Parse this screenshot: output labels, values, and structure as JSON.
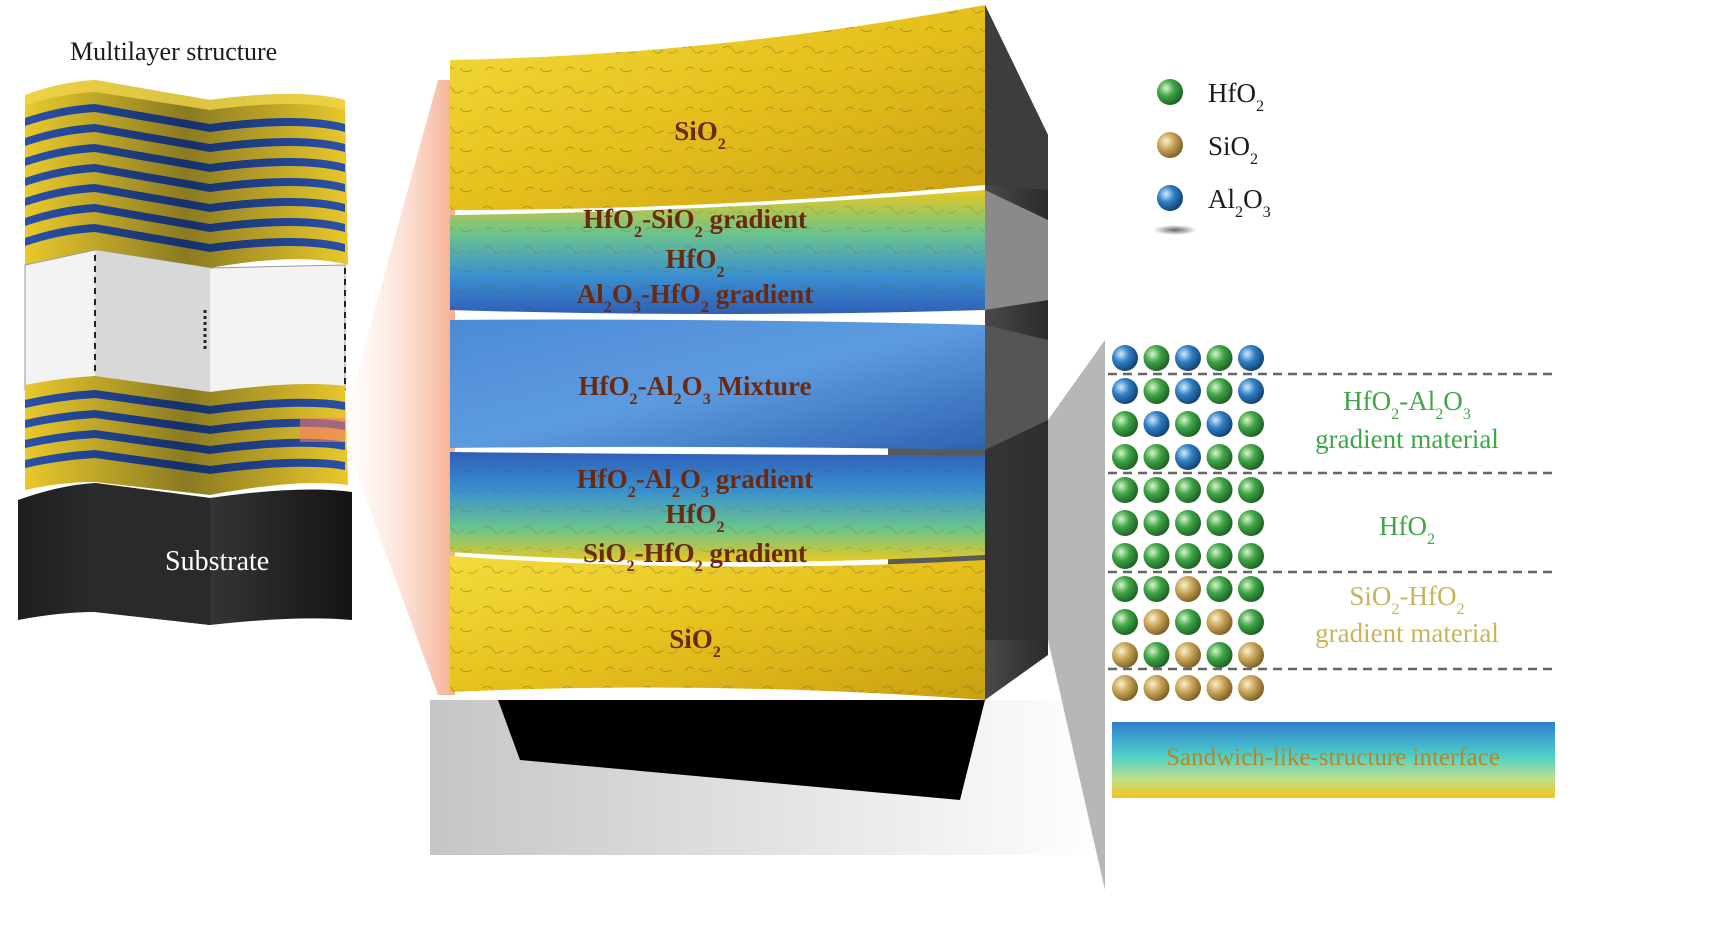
{
  "left_figure": {
    "title": "Multilayer structure",
    "substrate_label": "Substrate"
  },
  "central_block": {
    "layers": [
      {
        "lines": [
          [
            "SiO",
            "2",
            ""
          ]
        ]
      },
      {
        "lines": [
          [
            "HfO",
            "2",
            "-SiO",
            "2",
            " gradient"
          ],
          [
            "HfO",
            "2",
            ""
          ],
          [
            "Al",
            "2",
            "O",
            "3",
            "-HfO",
            "2",
            " gradient"
          ]
        ]
      },
      {
        "lines": [
          [
            "HfO",
            "2",
            "-Al",
            "2",
            "O",
            "3",
            " Mixture"
          ]
        ]
      },
      {
        "lines": [
          [
            "HfO",
            "2",
            "-Al",
            "2",
            "O",
            "3",
            " gradient"
          ],
          [
            "HfO",
            "2",
            ""
          ],
          [
            "SiO",
            "2",
            "-HfO",
            "2",
            " gradient"
          ]
        ]
      },
      {
        "lines": [
          [
            "SiO",
            "2",
            ""
          ]
        ]
      }
    ]
  },
  "legend": {
    "items": [
      {
        "parts": [
          "HfO",
          "2",
          ""
        ],
        "color": "#3fa548"
      },
      {
        "parts": [
          "SiO",
          "2",
          ""
        ],
        "color": "#c9a65a"
      },
      {
        "parts": [
          "Al",
          "2",
          "O",
          "3",
          ""
        ],
        "color": "#2f7fc4"
      }
    ]
  },
  "atomic_panel": {
    "rows": [
      [
        "A",
        "H",
        "A",
        "H",
        "A"
      ],
      [
        "A",
        "H",
        "A",
        "H",
        "A"
      ],
      [
        "H",
        "A",
        "H",
        "A",
        "H"
      ],
      [
        "H",
        "H",
        "A",
        "H",
        "H"
      ],
      [
        "H",
        "H",
        "H",
        "H",
        "H"
      ],
      [
        "H",
        "H",
        "H",
        "H",
        "H"
      ],
      [
        "H",
        "H",
        "H",
        "H",
        "H"
      ],
      [
        "H",
        "H",
        "S",
        "H",
        "H"
      ],
      [
        "H",
        "S",
        "H",
        "S",
        "H"
      ],
      [
        "S",
        "H",
        "S",
        "H",
        "S"
      ],
      [
        "S",
        "S",
        "S",
        "S",
        "S"
      ]
    ],
    "region_labels": [
      {
        "line1": [
          "HfO",
          "2",
          "-Al",
          "2",
          "O",
          "3",
          ""
        ],
        "line2": "gradient material",
        "color": "#3fa548"
      },
      {
        "line1": [
          "HfO",
          "2",
          ""
        ],
        "line2": "",
        "color": "#3fa548"
      },
      {
        "line1": [
          "SiO",
          "2",
          "-HfO",
          "2",
          ""
        ],
        "line2": "gradient material",
        "color": "#c9b45a"
      }
    ],
    "interface_label": "Sandwich-like-structure interface"
  },
  "colors": {
    "hfo2": "#3fa548",
    "sio2": "#c9a65a",
    "al2o3": "#2f7fc4",
    "yellow_layer": "#e8c21e",
    "blue_layer": "#3a78c8",
    "label_text": "#6b2a10"
  }
}
